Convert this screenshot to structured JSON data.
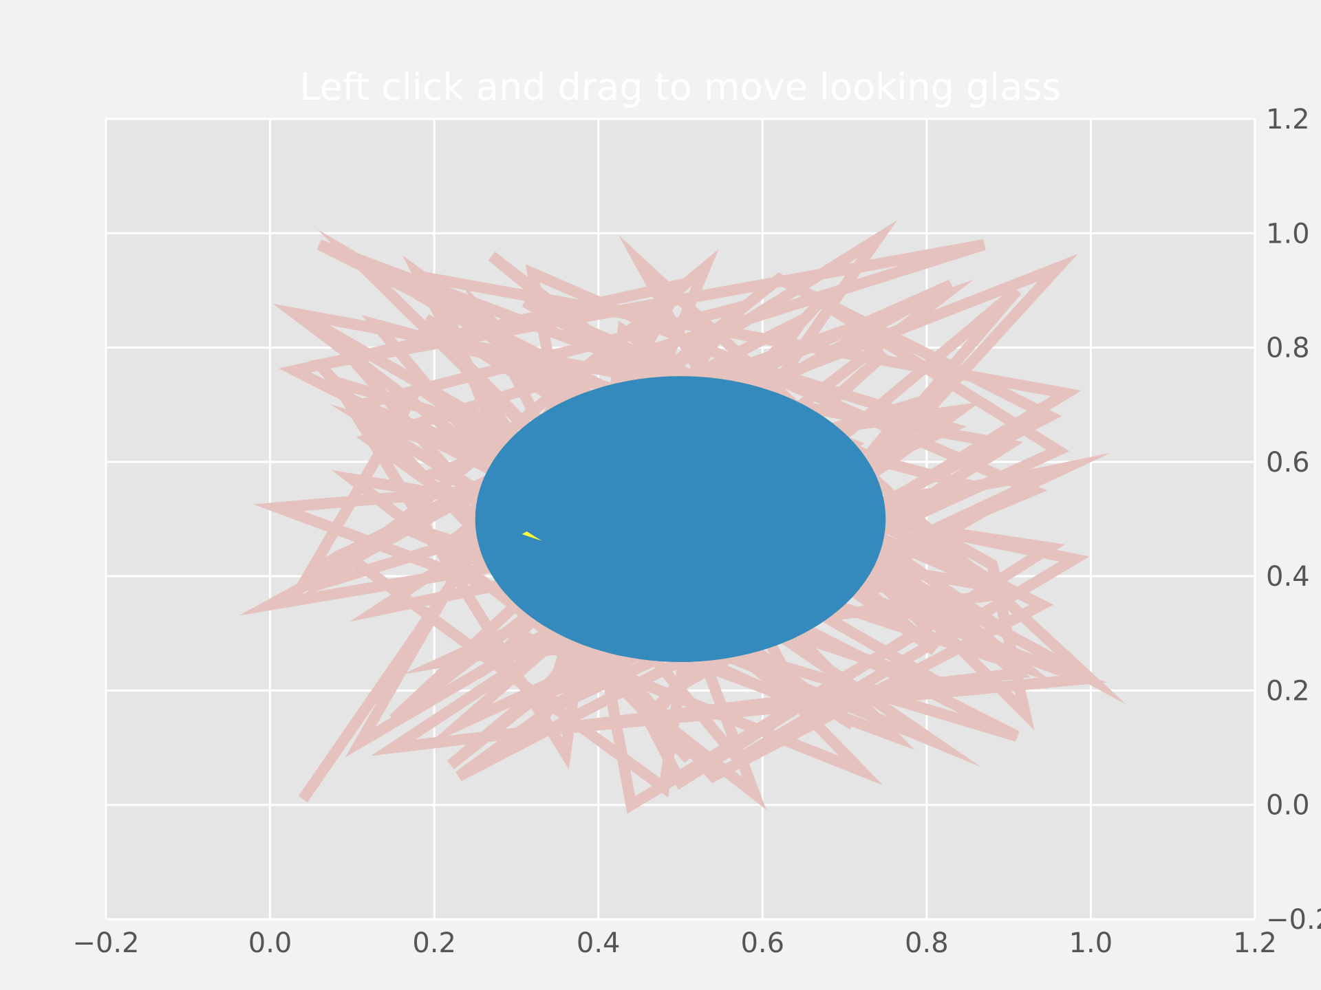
{
  "chart_data": {
    "type": "line",
    "title": "Left click and drag to move looking glass",
    "xlabel": "",
    "ylabel": "",
    "xlim": [
      -0.2,
      1.2
    ],
    "ylim": [
      -0.2,
      1.2
    ],
    "grid": true,
    "y_axis_side": "right",
    "xticks": [
      "−0.2",
      "0.0",
      "0.2",
      "0.4",
      "0.6",
      "0.8",
      "1.0",
      "1.2"
    ],
    "yticks": [
      "−0.2",
      "0.0",
      "0.2",
      "0.4",
      "0.6",
      "0.8",
      "1.0",
      "1.2"
    ],
    "colors": {
      "line": "#e5c2bd",
      "glass_fill": "#348abd",
      "glass_line": "#ffff33",
      "axes_bg": "#e5e5e5",
      "figure_bg": "#f2f2f2",
      "grid": "#ffffff"
    },
    "looking_glass": {
      "center": [
        0.5,
        0.5
      ],
      "radius": 0.25
    },
    "series": [
      {
        "x": [
          0.04,
          0.3,
          0.2,
          0.97,
          0.33,
          0.97,
          0.13,
          0.52,
          0.41,
          0.91,
          0.15,
          0.71,
          0.06,
          0.94,
          0.54,
          0.07,
          0.82,
          0.28,
          0.83,
          0.09,
          0.48,
          0.56,
          0.83,
          0.21,
          0.78,
          0.1,
          0.41,
          0.33,
          0.99,
          0.11,
          0.57,
          0.3,
          0.72,
          0.22,
          0.43,
          0.16,
          0.96,
          0.49,
          0.95,
          0.0,
          0.51,
          0.92,
          0.88,
          0.31,
          0.73,
          0.01,
          0.76,
          0.26,
          0.46,
          0.12,
          0.87,
          0.06,
          0.51,
          0.4,
          0.95,
          0.62,
          0.22,
          0.81,
          0.18,
          0.05,
          0.65,
          0.33,
          0.93,
          0.32,
          0.44,
          0.8,
          0.54,
          0.15,
          0.82,
          0.2,
          0.92,
          0.27,
          0.68,
          0.08,
          0.36,
          0.43,
          0.89,
          0.1,
          0.59,
          0.48,
          0.75,
          0.23,
          0.96,
          0.67,
          0.28,
          0.9,
          0.35,
          0.11,
          0.61,
          0.45,
          1.0,
          0.19,
          0.7,
          0.23,
          0.84,
          0.38,
          0.5,
          0.03,
          0.91,
          0.42,
          0.74,
          0.17,
          0.64,
          0.26,
          0.98,
          0.57,
          0.13,
          0.85,
          0.34,
          0.53,
          0.07,
          0.78,
          0.47,
          0.91,
          0.22,
          0.6,
          0.39,
          0.86,
          0.12,
          0.71,
          0.3,
          0.95,
          0.5,
          0.18,
          0.81,
          0.44,
          0.64,
          0.03,
          0.9,
          0.55
        ],
        "y": [
          0.01,
          0.55,
          0.92,
          0.72,
          0.16,
          0.59,
          0.34,
          0.71,
          0.8,
          0.23,
          0.1,
          0.63,
          0.98,
          0.35,
          0.05,
          0.83,
          0.21,
          0.47,
          0.91,
          0.44,
          0.03,
          0.78,
          0.66,
          0.25,
          0.39,
          0.96,
          0.52,
          0.13,
          0.22,
          0.7,
          0.87,
          0.3,
          0.06,
          0.8,
          0.37,
          0.49,
          0.94,
          0.2,
          0.58,
          0.35,
          0.75,
          0.16,
          0.42,
          0.88,
          0.61,
          0.52,
          0.12,
          0.86,
          0.29,
          0.64,
          0.98,
          0.77,
          0.08,
          0.27,
          0.68,
          0.92,
          0.46,
          0.11,
          0.73,
          0.41,
          0.85,
          0.19,
          0.55,
          0.93,
          0.0,
          0.31,
          0.67,
          0.15,
          0.89,
          0.58,
          0.24,
          0.96,
          0.48,
          0.74,
          0.09,
          0.83,
          0.38,
          0.57,
          0.02,
          0.44,
          0.79,
          0.14,
          0.62,
          0.88,
          0.26,
          0.37,
          0.71,
          0.11,
          0.53,
          0.95,
          0.22,
          0.85,
          0.4,
          0.05,
          0.69,
          0.6,
          0.91,
          0.76,
          0.12,
          0.33,
          0.99,
          0.48,
          0.18,
          0.64,
          0.43,
          0.08,
          0.84,
          0.56,
          0.28,
          0.94,
          0.39,
          0.7,
          0.16,
          0.9,
          0.07,
          0.5,
          0.81,
          0.34,
          0.67,
          0.14,
          0.59,
          0.45,
          0.04,
          0.93,
          0.27,
          0.74,
          0.2,
          0.86,
          0.63,
          0.31
        ]
      }
    ]
  }
}
